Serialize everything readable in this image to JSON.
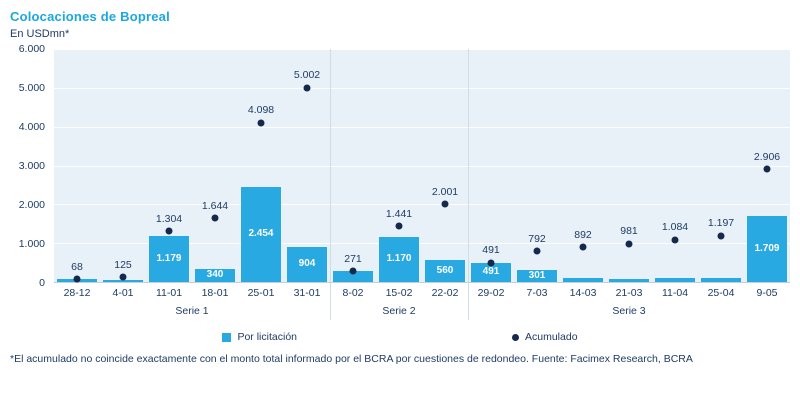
{
  "header": {
    "title": "Colocaciones de Bopreal",
    "subtitle": "En USDmn*"
  },
  "legend": {
    "bars": "Por licitación",
    "dots": "Acumulado"
  },
  "footnote": "*El acumulado no coincide exactamente con el monto total informado por el BCRA por cuestiones de redondeo. Fuente: Facimex Research, BCRA",
  "colors": {
    "accent": "#1CA7E0",
    "bar": "#29A9E2",
    "dot": "#14294C",
    "text": "#1F3C64",
    "plot_bg": "#E8F1F8"
  },
  "chart_data": {
    "type": "bar",
    "title": "Colocaciones de Bopreal",
    "ylabel": "En USDmn*",
    "ylim": [
      0,
      6000
    ],
    "yticks": [
      "6.000",
      "5.000",
      "4.000",
      "3.000",
      "2.000",
      "1.000",
      "0"
    ],
    "grid": true,
    "legend_position": "bottom",
    "series_names": [
      "Por licitación",
      "Acumulado"
    ],
    "groups": [
      {
        "label": "Serie 1",
        "span": 6
      },
      {
        "label": "Serie 2",
        "span": 3
      },
      {
        "label": "Serie 3",
        "span": 7
      }
    ],
    "points": [
      {
        "cat": "28-12",
        "bar": 68,
        "bar_label": "",
        "acc": 68,
        "acc_label": "68"
      },
      {
        "cat": "4-01",
        "bar": 57,
        "bar_label": "",
        "acc": 125,
        "acc_label": "125"
      },
      {
        "cat": "11-01",
        "bar": 1179,
        "bar_label": "1.179",
        "acc": 1304,
        "acc_label": "1.304"
      },
      {
        "cat": "18-01",
        "bar": 340,
        "bar_label": "340",
        "acc": 1644,
        "acc_label": "1.644"
      },
      {
        "cat": "25-01",
        "bar": 2454,
        "bar_label": "2.454",
        "acc": 4098,
        "acc_label": "4.098"
      },
      {
        "cat": "31-01",
        "bar": 904,
        "bar_label": "904",
        "acc": 5002,
        "acc_label": "5.002"
      },
      {
        "cat": "8-02",
        "bar": 271,
        "bar_label": "",
        "acc": 271,
        "acc_label": "271"
      },
      {
        "cat": "15-02",
        "bar": 1170,
        "bar_label": "1.170",
        "acc": 1441,
        "acc_label": "1.441"
      },
      {
        "cat": "22-02",
        "bar": 560,
        "bar_label": "560",
        "acc": 2001,
        "acc_label": "2.001"
      },
      {
        "cat": "29-02",
        "bar": 491,
        "bar_label": "491",
        "acc": 491,
        "acc_label": "491"
      },
      {
        "cat": "7-03",
        "bar": 301,
        "bar_label": "301",
        "acc": 792,
        "acc_label": "792"
      },
      {
        "cat": "14-03",
        "bar": 100,
        "bar_label": "",
        "acc": 892,
        "acc_label": "892"
      },
      {
        "cat": "21-03",
        "bar": 89,
        "bar_label": "",
        "acc": 981,
        "acc_label": "981"
      },
      {
        "cat": "11-04",
        "bar": 103,
        "bar_label": "",
        "acc": 1084,
        "acc_label": "1.084"
      },
      {
        "cat": "25-04",
        "bar": 113,
        "bar_label": "",
        "acc": 1197,
        "acc_label": "1.197"
      },
      {
        "cat": "9-05",
        "bar": 1709,
        "bar_label": "1.709",
        "acc": 2906,
        "acc_label": "2.906"
      }
    ]
  }
}
